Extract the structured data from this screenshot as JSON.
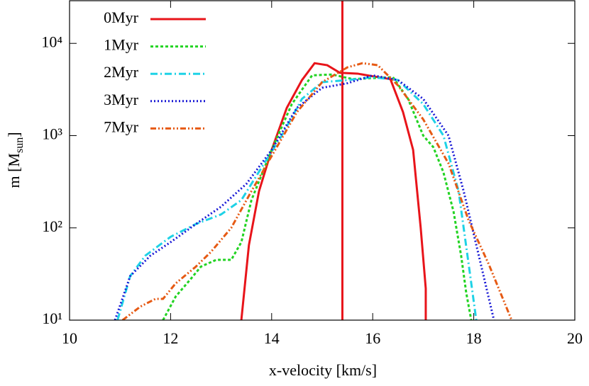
{
  "chart_data": {
    "type": "line",
    "xlabel": "x-velocity [km/s]",
    "ylabel_parts": [
      "m [M",
      "sun",
      "]"
    ],
    "xlim": [
      10,
      20
    ],
    "xticks": [
      10,
      12,
      14,
      16,
      18,
      20
    ],
    "ylim": [
      10,
      29000
    ],
    "log_y": true,
    "yticks": [
      {
        "value": 10,
        "label": "10¹"
      },
      {
        "value": 100,
        "label": "10²"
      },
      {
        "value": 1000,
        "label": "10³"
      },
      {
        "value": 10000,
        "label": "10⁴"
      }
    ],
    "legend": "top-left",
    "vline": {
      "x": 15.4,
      "color": "#e8141a"
    },
    "series": [
      {
        "name": "0Myr",
        "color": "#e8141a",
        "dash": "solid",
        "x": [
          13.4,
          13.55,
          13.75,
          14.0,
          14.3,
          14.6,
          14.85,
          15.1,
          15.35,
          15.7,
          16.0,
          16.35,
          16.6,
          16.8,
          16.95,
          17.05,
          17.05
        ],
        "values": [
          10,
          65,
          250,
          700,
          2000,
          4000,
          6100,
          5800,
          4800,
          4700,
          4400,
          4100,
          1800,
          700,
          100,
          22,
          10
        ]
      },
      {
        "name": "1Myr",
        "color": "#22d322",
        "dash": "dotted",
        "x": [
          11.85,
          12.1,
          12.4,
          12.6,
          12.9,
          13.2,
          13.4,
          13.6,
          14.0,
          14.4,
          14.8,
          15.2,
          15.6,
          16.0,
          16.4,
          16.7,
          17.0,
          17.2,
          17.4,
          17.6,
          17.75,
          17.85,
          17.95
        ],
        "values": [
          10,
          18,
          28,
          38,
          45,
          45,
          70,
          200,
          700,
          2200,
          4500,
          4600,
          4100,
          4200,
          4300,
          2500,
          1000,
          750,
          400,
          150,
          50,
          20,
          10
        ]
      },
      {
        "name": "2Myr",
        "color": "#1ed2e6",
        "dash": "dashdot",
        "x": [
          10.95,
          11.2,
          11.5,
          12.0,
          12.5,
          13.0,
          13.4,
          13.8,
          14.2,
          14.6,
          15.0,
          15.5,
          16.0,
          16.5,
          17.0,
          17.4,
          17.7,
          17.9,
          18.05
        ],
        "values": [
          10,
          30,
          50,
          80,
          110,
          140,
          200,
          450,
          1000,
          2500,
          3800,
          4000,
          4300,
          4000,
          2200,
          1000,
          250,
          40,
          10
        ]
      },
      {
        "name": "3Myr",
        "color": "#1a1ad6",
        "dash": "fine",
        "x": [
          10.9,
          11.2,
          11.6,
          12.0,
          12.5,
          13.0,
          13.5,
          14.0,
          14.5,
          15.0,
          15.5,
          16.0,
          16.5,
          17.0,
          17.5,
          17.8,
          18.1,
          18.4
        ],
        "values": [
          10,
          30,
          50,
          70,
          110,
          170,
          300,
          700,
          2000,
          3300,
          3700,
          4500,
          4000,
          2500,
          1000,
          250,
          50,
          10
        ]
      },
      {
        "name": "7Myr",
        "color": "#e65a14",
        "dash": "dashdotdot",
        "x": [
          11.05,
          11.4,
          11.7,
          11.85,
          12.1,
          12.5,
          12.8,
          13.2,
          13.6,
          14.0,
          14.5,
          15.0,
          15.5,
          15.8,
          16.1,
          16.5,
          17.0,
          17.5,
          17.9,
          18.3,
          18.75
        ],
        "values": [
          10,
          14,
          17,
          17,
          25,
          38,
          55,
          100,
          250,
          600,
          1800,
          3800,
          5500,
          6100,
          5800,
          3500,
          1500,
          500,
          120,
          40,
          10
        ]
      }
    ]
  }
}
